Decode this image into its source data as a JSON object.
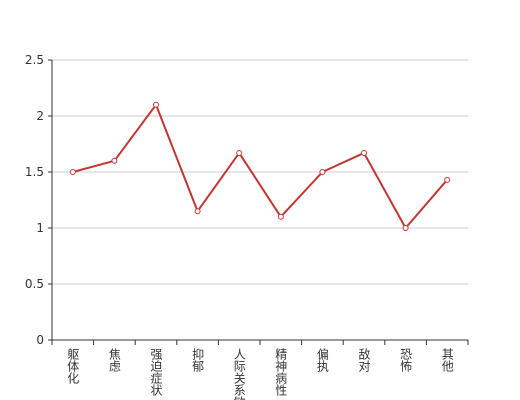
{
  "chart_data": {
    "type": "line",
    "categories": [
      "躯体化",
      "焦虑",
      "强迫症状",
      "抑郁",
      "人际关系敏感",
      "精神病性",
      "偏执",
      "敌对",
      "恐怖",
      "其他"
    ],
    "values": [
      1.5,
      1.6,
      2.1,
      1.15,
      1.67,
      1.1,
      1.5,
      1.67,
      1.0,
      1.43
    ],
    "color": "#c23531",
    "ylim": [
      0,
      2.5
    ],
    "yticks": [
      0,
      0.5,
      1,
      1.5,
      2,
      2.5
    ],
    "grid": true
  }
}
